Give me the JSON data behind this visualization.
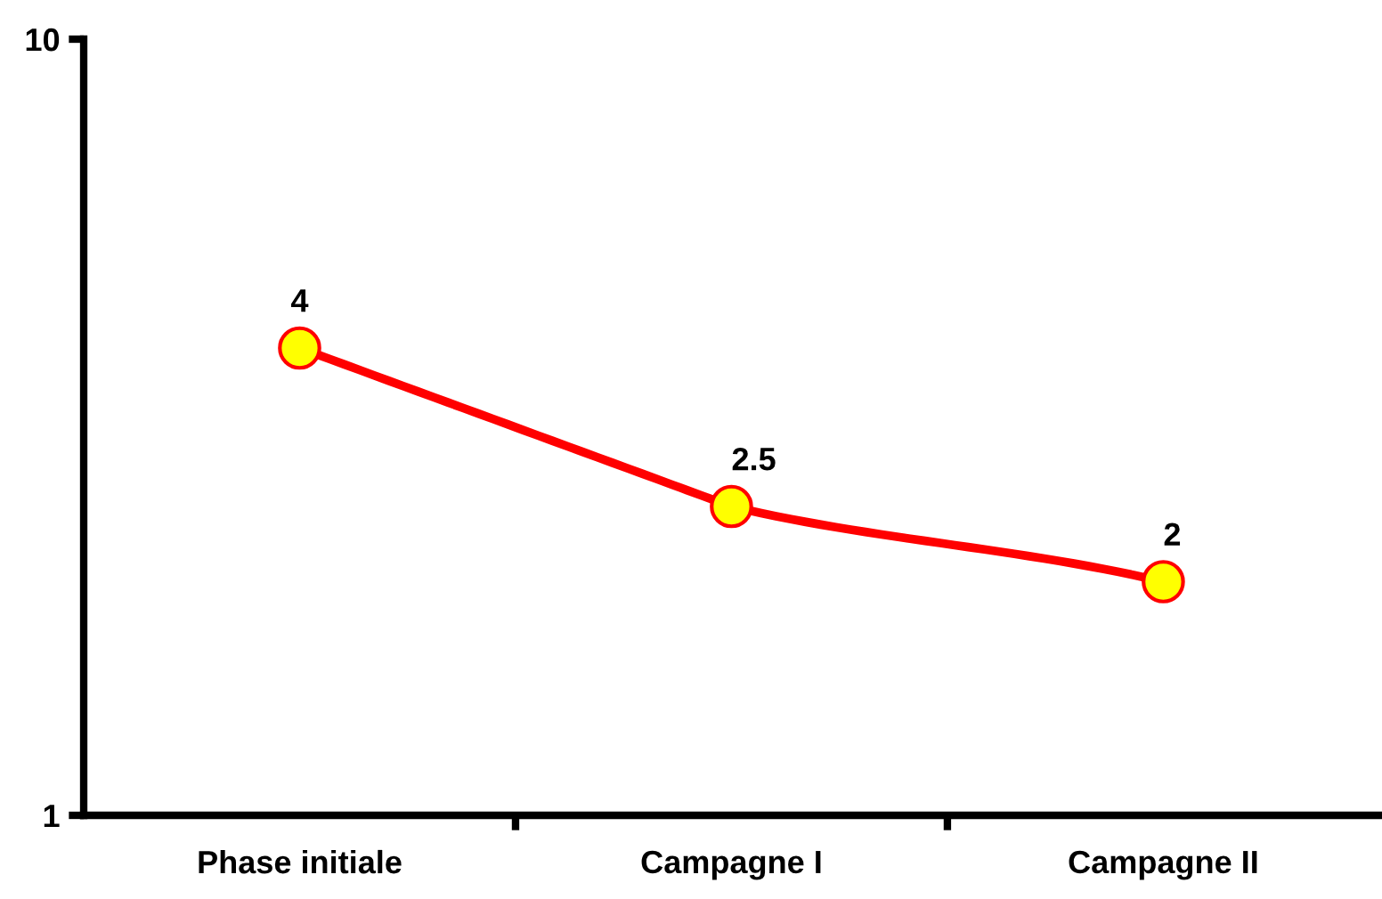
{
  "chart_data": {
    "type": "line",
    "categories": [
      "Phase initiale",
      "Campagne I",
      "Campagne II"
    ],
    "series": [
      {
        "color": "#ff0000",
        "values": [
          4,
          2.5,
          2
        ]
      }
    ],
    "log": true,
    "ylim": [
      1,
      10
    ],
    "yticks": [
      1,
      10
    ],
    "grid": false,
    "legend": false,
    "marker": "circle",
    "line_style": "solid",
    "data_labels": true
  }
}
